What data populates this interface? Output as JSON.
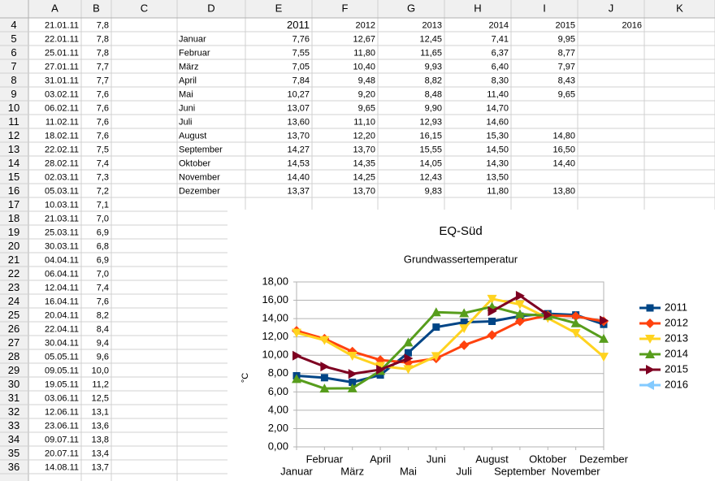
{
  "sheet": {
    "columns": [
      "A",
      "B",
      "C",
      "D",
      "E",
      "F",
      "G",
      "H",
      "I",
      "J",
      "K"
    ],
    "rows": [
      {
        "row": 4,
        "A": "21.01.11",
        "B": "7,8",
        "E": "2011",
        "F": "2012",
        "G": "2013",
        "H": "2014",
        "I": "2015",
        "J": "2016"
      },
      {
        "row": 5,
        "A": "22.01.11",
        "B": "7,8",
        "D": "Januar",
        "E": "7,76",
        "F": "12,67",
        "G": "12,45",
        "H": "7,41",
        "I": "9,95"
      },
      {
        "row": 6,
        "A": "25.01.11",
        "B": "7,8",
        "D": "Februar",
        "E": "7,55",
        "F": "11,80",
        "G": "11,65",
        "H": "6,37",
        "I": "8,77"
      },
      {
        "row": 7,
        "A": "27.01.11",
        "B": "7,7",
        "D": "März",
        "E": "7,05",
        "F": "10,40",
        "G": "9,93",
        "H": "6,40",
        "I": "7,97"
      },
      {
        "row": 8,
        "A": "31.01.11",
        "B": "7,7",
        "D": "April",
        "E": "7,84",
        "F": "9,48",
        "G": "8,82",
        "H": "8,30",
        "I": "8,43"
      },
      {
        "row": 9,
        "A": "03.02.11",
        "B": "7,6",
        "D": "Mai",
        "E": "10,27",
        "F": "9,20",
        "G": "8,48",
        "H": "11,40",
        "I": "9,65"
      },
      {
        "row": 10,
        "A": "06.02.11",
        "B": "7,6",
        "D": "Juni",
        "E": "13,07",
        "F": "9,65",
        "G": "9,90",
        "H": "14,70"
      },
      {
        "row": 11,
        "A": "11.02.11",
        "B": "7,6",
        "D": "Juli",
        "E": "13,60",
        "F": "11,10",
        "G": "12,93",
        "H": "14,60"
      },
      {
        "row": 12,
        "A": "18.02.11",
        "B": "7,6",
        "D": "August",
        "E": "13,70",
        "F": "12,20",
        "G": "16,15",
        "H": "15,30",
        "I": "14,80"
      },
      {
        "row": 13,
        "A": "22.02.11",
        "B": "7,5",
        "D": "September",
        "E": "14,27",
        "F": "13,70",
        "G": "15,55",
        "H": "14,50",
        "I": "16,50"
      },
      {
        "row": 14,
        "A": "28.02.11",
        "B": "7,4",
        "D": "Oktober",
        "E": "14,53",
        "F": "14,35",
        "G": "14,05",
        "H": "14,30",
        "I": "14,40"
      },
      {
        "row": 15,
        "A": "02.03.11",
        "B": "7,3",
        "D": "November",
        "E": "14,40",
        "F": "14,25",
        "G": "12,43",
        "H": "13,50"
      },
      {
        "row": 16,
        "A": "05.03.11",
        "B": "7,2",
        "D": "Dezember",
        "E": "13,37",
        "F": "13,70",
        "G": "9,83",
        "H": "11,80",
        "I": "13,80"
      },
      {
        "row": 17,
        "A": "10.03.11",
        "B": "7,1"
      },
      {
        "row": 18,
        "A": "21.03.11",
        "B": "7,0"
      },
      {
        "row": 19,
        "A": "25.03.11",
        "B": "6,9"
      },
      {
        "row": 20,
        "A": "30.03.11",
        "B": "6,8"
      },
      {
        "row": 21,
        "A": "04.04.11",
        "B": "6,9"
      },
      {
        "row": 22,
        "A": "06.04.11",
        "B": "7,0"
      },
      {
        "row": 23,
        "A": "12.04.11",
        "B": "7,4"
      },
      {
        "row": 24,
        "A": "16.04.11",
        "B": "7,6"
      },
      {
        "row": 25,
        "A": "20.04.11",
        "B": "8,2"
      },
      {
        "row": 26,
        "A": "22.04.11",
        "B": "8,4"
      },
      {
        "row": 27,
        "A": "30.04.11",
        "B": "9,4"
      },
      {
        "row": 28,
        "A": "05.05.11",
        "B": "9,6"
      },
      {
        "row": 29,
        "A": "09.05.11",
        "B": "10,0"
      },
      {
        "row": 30,
        "A": "19.05.11",
        "B": "11,2"
      },
      {
        "row": 31,
        "A": "03.06.11",
        "B": "12,5"
      },
      {
        "row": 32,
        "A": "12.06.11",
        "B": "13,1"
      },
      {
        "row": 33,
        "A": "23.06.11",
        "B": "13,6"
      },
      {
        "row": 34,
        "A": "09.07.11",
        "B": "13,8"
      },
      {
        "row": 35,
        "A": "20.07.11",
        "B": "13,4"
      },
      {
        "row": 36,
        "A": "14.08.11",
        "B": "13,7"
      }
    ]
  },
  "chart_data": {
    "type": "line",
    "title": "EQ-Süd",
    "subtitle": "Grundwassertemperatur",
    "y_label": "°C",
    "categories": [
      "Januar",
      "Februar",
      "März",
      "April",
      "Mai",
      "Juni",
      "Juli",
      "August",
      "September",
      "Oktober",
      "November",
      "Dezember"
    ],
    "series": [
      {
        "name": "2011",
        "color": "#004586",
        "marker": "square",
        "values": [
          7.76,
          7.55,
          7.05,
          7.84,
          10.27,
          13.07,
          13.6,
          13.7,
          14.27,
          14.53,
          14.4,
          13.37
        ]
      },
      {
        "name": "2012",
        "color": "#ff420e",
        "marker": "diamond",
        "values": [
          12.67,
          11.8,
          10.4,
          9.48,
          9.2,
          9.65,
          11.1,
          12.2,
          13.7,
          14.35,
          14.25,
          13.7
        ]
      },
      {
        "name": "2013",
        "color": "#ffd320",
        "marker": "down",
        "values": [
          12.45,
          11.65,
          9.93,
          8.82,
          8.48,
          9.9,
          12.93,
          16.15,
          15.55,
          14.05,
          12.43,
          9.83
        ]
      },
      {
        "name": "2014",
        "color": "#579d1c",
        "marker": "up",
        "values": [
          7.41,
          6.37,
          6.4,
          8.3,
          11.4,
          14.7,
          14.6,
          15.3,
          14.5,
          14.3,
          13.5,
          11.8
        ]
      },
      {
        "name": "2015",
        "color": "#7e0021",
        "marker": "right",
        "values": [
          9.95,
          8.77,
          7.97,
          8.43,
          9.65,
          null,
          null,
          14.8,
          16.5,
          14.4,
          null,
          13.8
        ]
      },
      {
        "name": "2016",
        "color": "#83caff",
        "marker": "left",
        "values": [
          null,
          null,
          null,
          null,
          null,
          null,
          null,
          null,
          null,
          null,
          null,
          null
        ]
      }
    ],
    "ylim": [
      0,
      18
    ],
    "yticks": [
      {
        "value": 0,
        "label": "0,00"
      },
      {
        "value": 2,
        "label": "2,00"
      },
      {
        "value": 4,
        "label": "4,00"
      },
      {
        "value": 6,
        "label": "6,00"
      },
      {
        "value": 8,
        "label": "8,00"
      },
      {
        "value": 10,
        "label": "10,00"
      },
      {
        "value": 12,
        "label": "12,00"
      },
      {
        "value": 14,
        "label": "14,00"
      },
      {
        "value": 16,
        "label": "16,00"
      },
      {
        "value": 18,
        "label": "18,00"
      }
    ],
    "grid": true,
    "legend": "right"
  }
}
